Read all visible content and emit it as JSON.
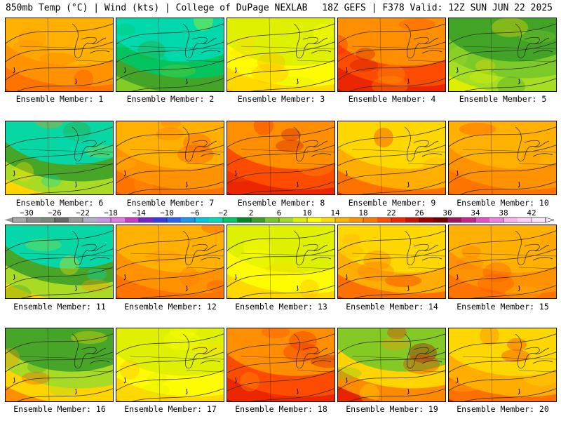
{
  "header": {
    "left": "850mb Temp (°C) | Wind (kts) | College of DuPage NEXLAB",
    "right": "18Z GEFS | F378 Valid: 12Z SUN JUN 22 2025"
  },
  "member_label_prefix": "Ensemble Member: ",
  "members": [
    {
      "id": 1,
      "label": "Ensemble Member: 1",
      "scheme": "warm"
    },
    {
      "id": 2,
      "label": "Ensemble Member: 2",
      "scheme": "cool"
    },
    {
      "id": 3,
      "label": "Ensemble Member: 3",
      "scheme": "mild"
    },
    {
      "id": 4,
      "label": "Ensemble Member: 4",
      "scheme": "hot"
    },
    {
      "id": 5,
      "label": "Ensemble Member: 5",
      "scheme": "mildcool"
    },
    {
      "id": 6,
      "label": "Ensemble Member: 6",
      "scheme": "coolnorth"
    },
    {
      "id": 7,
      "label": "Ensemble Member: 7",
      "scheme": "warm"
    },
    {
      "id": 8,
      "label": "Ensemble Member: 8",
      "scheme": "hot"
    },
    {
      "id": 9,
      "label": "Ensemble Member: 9",
      "scheme": "hotwest"
    },
    {
      "id": 10,
      "label": "Ensemble Member: 10",
      "scheme": "warm"
    },
    {
      "id": 11,
      "label": "Ensemble Member: 11",
      "scheme": "coolnorth"
    },
    {
      "id": 12,
      "label": "Ensemble Member: 12",
      "scheme": "warm"
    },
    {
      "id": 13,
      "label": "Ensemble Member: 13",
      "scheme": "mild"
    },
    {
      "id": 14,
      "label": "Ensemble Member: 14",
      "scheme": "hotwest"
    },
    {
      "id": 15,
      "label": "Ensemble Member: 15",
      "scheme": "warm"
    },
    {
      "id": 16,
      "label": "Ensemble Member: 16",
      "scheme": "cooleast"
    },
    {
      "id": 17,
      "label": "Ensemble Member: 17",
      "scheme": "mild"
    },
    {
      "id": 18,
      "label": "Ensemble Member: 18",
      "scheme": "hot"
    },
    {
      "id": 19,
      "label": "Ensemble Member: 19",
      "scheme": "hotwestcooleast"
    },
    {
      "id": 20,
      "label": "Ensemble Member: 20",
      "scheme": "hotwest"
    }
  ],
  "colorbar": {
    "unit": "°C",
    "min": -32,
    "max": 44,
    "step": 2,
    "tick_labels": [
      "-30",
      "-26",
      "-22",
      "-18",
      "-14",
      "-10",
      "-6",
      "-2",
      "2",
      "6",
      "10",
      "14",
      "18",
      "22",
      "26",
      "30",
      "34",
      "38",
      "42"
    ],
    "colors": [
      "#a8a8a8",
      "#8c8c8c",
      "#7a8a7a",
      "#6a6a6a",
      "#999999",
      "#b0b0c8",
      "#c896e6",
      "#e67ae6",
      "#c83cc8",
      "#7828c8",
      "#3c3cdc",
      "#2864f0",
      "#1e96f0",
      "#00c8dc",
      "#00dcb4",
      "#00c864",
      "#008c28",
      "#3ca028",
      "#78c828",
      "#a0dc28",
      "#dcf000",
      "#ffff00",
      "#ffdc00",
      "#ffb400",
      "#ff9600",
      "#ff7800",
      "#ff5000",
      "#f02800",
      "#c81400",
      "#a00000",
      "#780000",
      "#a0145a",
      "#c8288c",
      "#e650c8",
      "#f082e6",
      "#fab4f0",
      "#ffd2fa",
      "#ffe6ff"
    ]
  }
}
